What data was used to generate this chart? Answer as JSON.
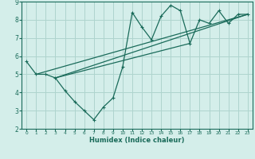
{
  "xlabel": "Humidex (Indice chaleur)",
  "bg_color": "#d4eeea",
  "grid_color": "#aed4ce",
  "line_color": "#1a6b5a",
  "x_data": [
    0,
    1,
    2,
    3,
    4,
    5,
    6,
    7,
    8,
    9,
    10,
    11,
    12,
    13,
    14,
    15,
    16,
    17,
    18,
    19,
    20,
    21,
    22,
    23
  ],
  "y_main": [
    5.7,
    5.0,
    5.0,
    4.8,
    4.1,
    3.5,
    3.0,
    2.5,
    3.2,
    3.7,
    5.4,
    8.4,
    7.6,
    6.9,
    8.2,
    8.8,
    8.5,
    6.7,
    8.0,
    7.8,
    8.5,
    7.8,
    8.3,
    8.3
  ],
  "xlim": [
    -0.5,
    23.5
  ],
  "ylim": [
    2,
    9
  ],
  "xticks": [
    0,
    1,
    2,
    3,
    4,
    5,
    6,
    7,
    8,
    9,
    10,
    11,
    12,
    13,
    14,
    15,
    16,
    17,
    18,
    19,
    20,
    21,
    22,
    23
  ],
  "yticks": [
    2,
    3,
    4,
    5,
    6,
    7,
    8,
    9
  ],
  "trend_lines": [
    {
      "x_start": 1,
      "y_start": 5.0,
      "x_end": 23,
      "y_end": 8.3
    },
    {
      "x_start": 3,
      "y_start": 4.8,
      "x_end": 17,
      "y_end": 6.7
    },
    {
      "x_start": 3,
      "y_start": 4.8,
      "x_end": 23,
      "y_end": 8.3
    }
  ]
}
